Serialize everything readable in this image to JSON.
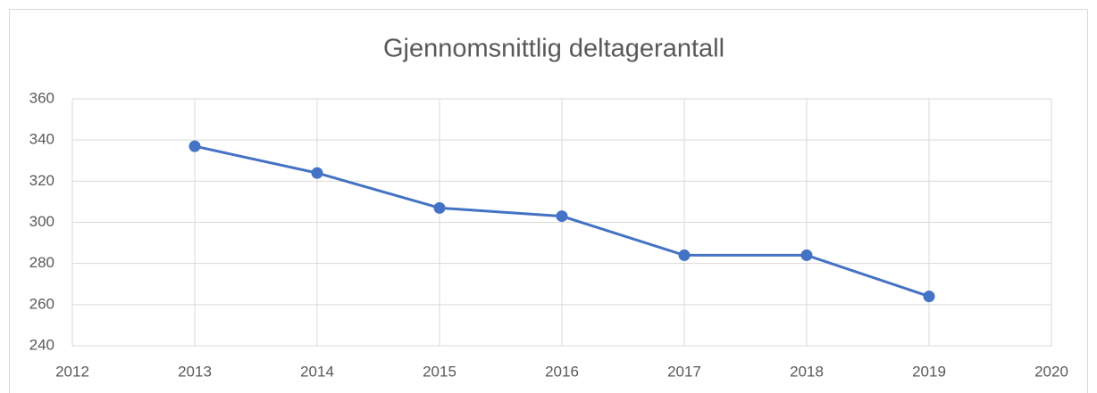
{
  "chart_data": {
    "type": "line",
    "title": "Gjennomsnittlig deltagerantall",
    "x": [
      2013,
      2014,
      2015,
      2016,
      2017,
      2018,
      2019
    ],
    "series": [
      {
        "name": "Gjennomsnittlig deltagerantall",
        "color": "#4472c4",
        "values": [
          337,
          324,
          307,
          303,
          284,
          284,
          264
        ]
      }
    ],
    "xlim": [
      2012,
      2020
    ],
    "xticks": [
      2012,
      2013,
      2014,
      2015,
      2016,
      2017,
      2018,
      2019,
      2020
    ],
    "ylim": [
      240,
      360
    ],
    "yticks": [
      240,
      260,
      280,
      300,
      320,
      340,
      360
    ],
    "grid": true
  }
}
